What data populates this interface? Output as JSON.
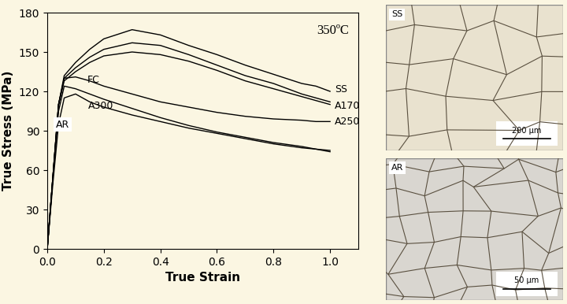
{
  "chart_data": {
    "type": "line",
    "annotation": "350ºC",
    "x_label": "True Strain",
    "y_label": "True Stress (MPa)",
    "color": "#000000",
    "x": [
      0.0,
      0.02,
      0.04,
      0.06,
      0.1,
      0.15,
      0.2,
      0.3,
      0.4,
      0.5,
      0.6,
      0.7,
      0.8,
      0.9,
      0.95,
      1.0
    ],
    "series": [
      {
        "name": "SS",
        "values": [
          0,
          55,
          110,
          132,
          142,
          152,
          160,
          167,
          163,
          155,
          148,
          140,
          133,
          126,
          124,
          120
        ]
      },
      {
        "name": "A170",
        "values": [
          0,
          55,
          110,
          130,
          138,
          146,
          152,
          157,
          155,
          148,
          140,
          132,
          126,
          118,
          115,
          112
        ]
      },
      {
        "name": "A250",
        "values": [
          0,
          55,
          110,
          130,
          131,
          128,
          124,
          118,
          112,
          108,
          104,
          101,
          99,
          98,
          97,
          97
        ]
      },
      {
        "name": "FC",
        "values": [
          0,
          55,
          110,
          128,
          135,
          142,
          147,
          150,
          148,
          143,
          136,
          128,
          122,
          116,
          113,
          110
        ]
      },
      {
        "name": "A300",
        "values": [
          0,
          55,
          105,
          124,
          122,
          118,
          114,
          107,
          100,
          94,
          89,
          85,
          81,
          78,
          76,
          75
        ]
      },
      {
        "name": "AR",
        "values": [
          0,
          50,
          95,
          115,
          118,
          112,
          108,
          102,
          97,
          92,
          88,
          84,
          80,
          77,
          76,
          74
        ]
      }
    ],
    "xlim": [
      0,
      1.1
    ],
    "xticks": [
      {
        "value": 0,
        "label": "0.0"
      },
      {
        "value": 0.2,
        "label": "0.2"
      },
      {
        "value": 0.4,
        "label": "0.4"
      },
      {
        "value": 0.6,
        "label": "0.6"
      },
      {
        "value": 0.8,
        "label": "0.8"
      },
      {
        "value": 1.0,
        "label": "1.0"
      }
    ],
    "ylim": [
      0,
      180
    ],
    "yticks": [
      0,
      30,
      60,
      90,
      120,
      150,
      180
    ],
    "grid": false
  },
  "micrographs": [
    {
      "label": "SS",
      "scale_bar": "200 µm"
    },
    {
      "label": "AR",
      "scale_bar": "50 µm"
    }
  ]
}
